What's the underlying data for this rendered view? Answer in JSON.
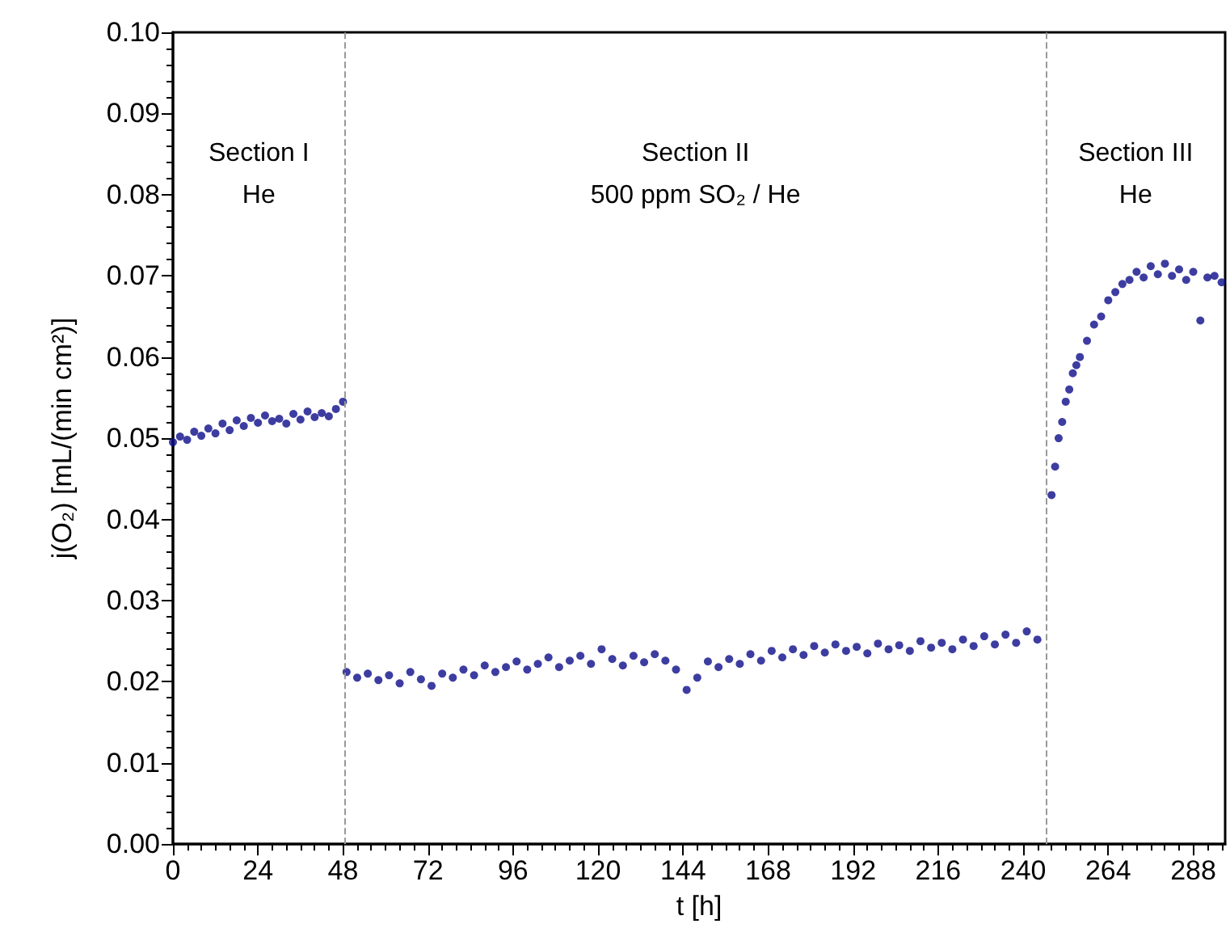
{
  "chart_data": {
    "type": "scatter",
    "xlabel": "t [h]",
    "ylabel": "j(O₂) [mL/(min cm²)]",
    "xlim": [
      0,
      297
    ],
    "xticks": [
      0,
      24,
      48,
      72,
      96,
      120,
      144,
      168,
      192,
      216,
      240,
      264,
      288
    ],
    "ylim": [
      0,
      0.1
    ],
    "yticks": [
      {
        "value": 0,
        "label": "0.00"
      },
      {
        "value": 0.01,
        "label": "0.01"
      },
      {
        "value": 0.02,
        "label": "0.02"
      },
      {
        "value": 0.03,
        "label": "0.03"
      },
      {
        "value": 0.04,
        "label": "0.04"
      },
      {
        "value": 0.05,
        "label": "0.05"
      },
      {
        "value": 0.06,
        "label": "0.06"
      },
      {
        "value": 0.07,
        "label": "0.07"
      },
      {
        "value": 0.08,
        "label": "0.08"
      },
      {
        "value": 0.09,
        "label": "0.09"
      },
      {
        "value": 0.1,
        "label": "0.10"
      }
    ],
    "grid": false,
    "marker": "circle",
    "annotations": [
      "Section I\nHe",
      "Section II\n500 ppm SO₂ / He",
      "Section III\nHe"
    ],
    "ref_lines": [
      {
        "axis": "x",
        "value": 48.5,
        "label": null,
        "color": "#999999",
        "line_style": "dashed"
      },
      {
        "axis": "x",
        "value": 246.5,
        "label": null,
        "color": "#999999",
        "line_style": "dashed"
      }
    ],
    "series": [
      {
        "color": "#0d0d8a",
        "x": [
          0,
          2,
          4,
          6,
          8,
          10,
          12,
          14,
          16,
          18,
          20,
          22,
          24,
          26,
          28,
          30,
          32,
          34,
          36,
          38,
          40,
          42,
          44,
          46,
          48,
          49,
          52,
          55,
          58,
          61,
          64,
          67,
          70,
          73,
          76,
          79,
          82,
          85,
          88,
          91,
          94,
          97,
          100,
          103,
          106,
          109,
          112,
          115,
          118,
          121,
          124,
          127,
          130,
          133,
          136,
          139,
          142,
          145,
          148,
          151,
          154,
          157,
          160,
          163,
          166,
          169,
          172,
          175,
          178,
          181,
          184,
          187,
          190,
          193,
          196,
          199,
          202,
          205,
          208,
          211,
          214,
          217,
          220,
          223,
          226,
          229,
          232,
          235,
          238,
          241,
          244,
          248,
          249,
          250,
          251,
          252,
          253,
          254,
          255,
          256,
          258,
          260,
          262,
          264,
          266,
          268,
          270,
          272,
          274,
          276,
          278,
          280,
          282,
          284,
          286,
          288,
          290,
          292,
          294,
          296
        ],
        "values": [
          0.0495,
          0.0502,
          0.0498,
          0.0508,
          0.0503,
          0.0512,
          0.0506,
          0.0518,
          0.051,
          0.0522,
          0.0515,
          0.0525,
          0.0519,
          0.0528,
          0.0521,
          0.0524,
          0.0518,
          0.053,
          0.0523,
          0.0533,
          0.0526,
          0.0531,
          0.0527,
          0.0536,
          0.0545,
          0.0212,
          0.0205,
          0.021,
          0.0202,
          0.0208,
          0.0198,
          0.0212,
          0.0203,
          0.0195,
          0.021,
          0.0205,
          0.0215,
          0.0208,
          0.022,
          0.0212,
          0.0218,
          0.0225,
          0.0215,
          0.0222,
          0.023,
          0.0218,
          0.0226,
          0.0232,
          0.0222,
          0.024,
          0.0228,
          0.022,
          0.0232,
          0.0224,
          0.0234,
          0.0226,
          0.0215,
          0.019,
          0.0205,
          0.0225,
          0.0218,
          0.0228,
          0.0222,
          0.0234,
          0.0226,
          0.0238,
          0.023,
          0.024,
          0.0233,
          0.0244,
          0.0236,
          0.0246,
          0.0238,
          0.0243,
          0.0235,
          0.0247,
          0.024,
          0.0245,
          0.0238,
          0.025,
          0.0242,
          0.0248,
          0.024,
          0.0252,
          0.0244,
          0.0256,
          0.0246,
          0.0258,
          0.0248,
          0.0262,
          0.0252,
          0.043,
          0.0465,
          0.05,
          0.052,
          0.0545,
          0.056,
          0.058,
          0.059,
          0.06,
          0.062,
          0.064,
          0.065,
          0.067,
          0.068,
          0.069,
          0.0695,
          0.0705,
          0.0698,
          0.0712,
          0.0702,
          0.0715,
          0.07,
          0.0708,
          0.0695,
          0.0705,
          0.0645,
          0.0698,
          0.07,
          0.0692
        ]
      }
    ]
  }
}
